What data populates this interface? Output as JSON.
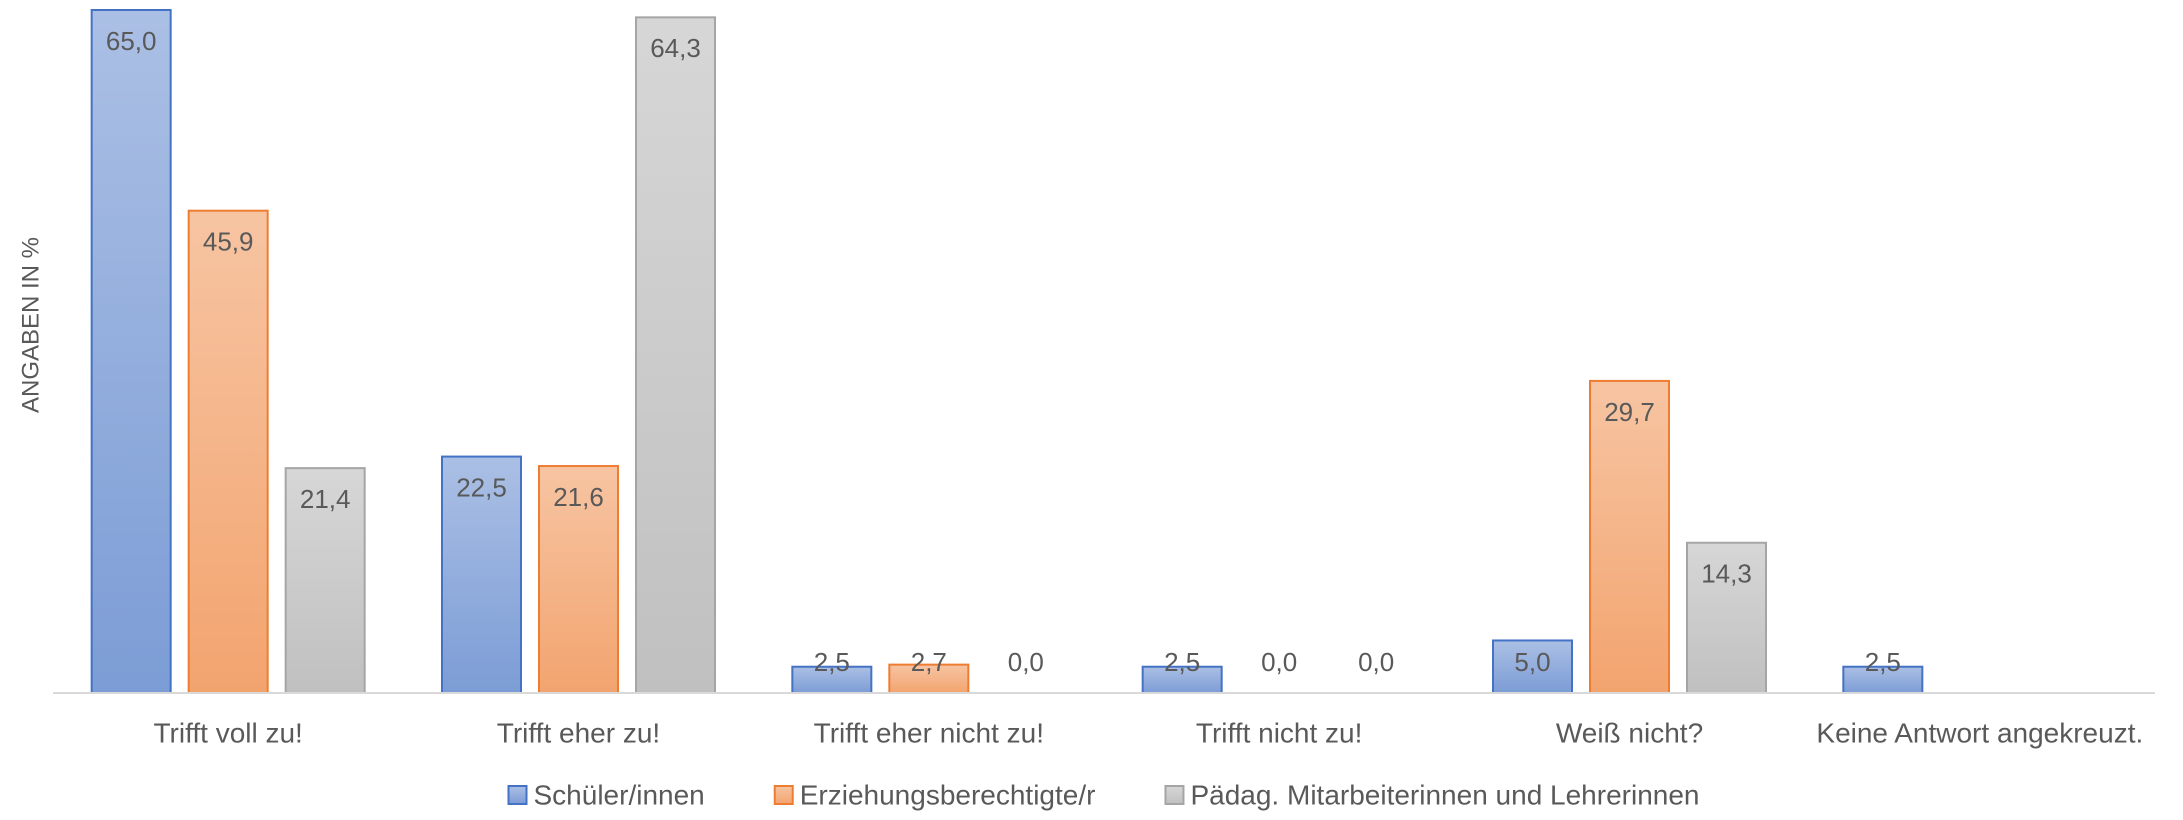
{
  "chart_data": {
    "type": "bar",
    "y_label": "ANGABEN IN %",
    "categories": [
      "Trifft voll zu!",
      "Trifft eher zu!",
      "Trifft eher nicht zu!",
      "Trifft nicht zu!",
      "Weiß nicht?",
      "Keine Antwort angekreuzt."
    ],
    "series": [
      {
        "name": "Schüler/innen",
        "color": "#4472c4",
        "values": [
          65.0,
          22.5,
          2.5,
          2.5,
          5.0,
          2.5
        ],
        "value_labels": [
          "65,0",
          "22,5",
          "2,5",
          "2,5",
          "5,0",
          "2,5"
        ]
      },
      {
        "name": "Erziehungsberechtigte/r",
        "color": "#ed7d31",
        "values": [
          45.9,
          21.6,
          2.7,
          0.0,
          29.7,
          null
        ],
        "value_labels": [
          "45,9",
          "21,6",
          "2,7",
          "0,0",
          "29,7",
          null
        ]
      },
      {
        "name": "Pädag. Mitarbeiterinnen und Lehrerinnen",
        "color": "#a5a5a5",
        "values": [
          21.4,
          64.3,
          0.0,
          0.0,
          14.3,
          null
        ],
        "value_labels": [
          "21,4",
          "64,3",
          "0,0",
          "0,0",
          "14,3",
          null
        ]
      }
    ],
    "ylim": [
      0,
      65
    ],
    "grid": false,
    "legend": "bottom"
  }
}
